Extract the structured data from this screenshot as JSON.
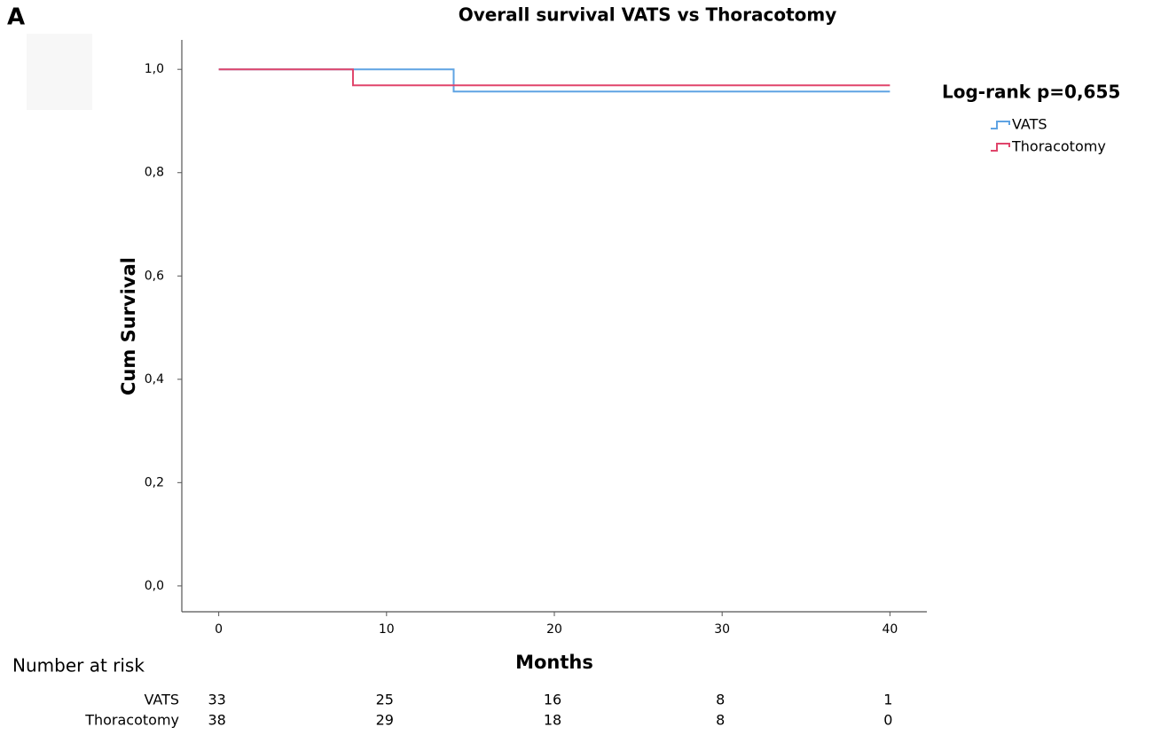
{
  "panel_label": "A",
  "chart_data": {
    "type": "line",
    "step": "post",
    "title": "Overall survival VATS vs Thoracotomy",
    "x_label": "Months",
    "y_label": "Cum Survival",
    "xlim": [
      -2.2,
      42.2
    ],
    "ylim": [
      -0.05,
      1.057
    ],
    "xticks": [
      0,
      10,
      20,
      30,
      40
    ],
    "yticks": [
      {
        "value": 0.0,
        "label": "0,0"
      },
      {
        "value": 0.2,
        "label": "0,2"
      },
      {
        "value": 0.4,
        "label": "0,4"
      },
      {
        "value": 0.6,
        "label": "0,6"
      },
      {
        "value": 0.8,
        "label": "0,8"
      },
      {
        "value": 1.0,
        "label": "1,0"
      }
    ],
    "grid": false,
    "legend_title": "Log-rank p=0,655",
    "legend_position": "right",
    "series": [
      {
        "name": "VATS",
        "color": "#5fa3e3",
        "x": [
          0,
          14,
          40
        ],
        "values": [
          1.0,
          0.957,
          0.957
        ]
      },
      {
        "name": "Thoracotomy",
        "color": "#e0456b",
        "x": [
          0,
          8,
          40
        ],
        "values": [
          1.0,
          0.969,
          0.969
        ]
      }
    ],
    "risk_table": {
      "title": "Number at risk",
      "rows": [
        {
          "name": "VATS",
          "values": [
            33,
            25,
            16,
            8,
            1
          ]
        },
        {
          "name": "Thoracotomy",
          "values": [
            38,
            29,
            18,
            8,
            0
          ]
        }
      ]
    }
  }
}
